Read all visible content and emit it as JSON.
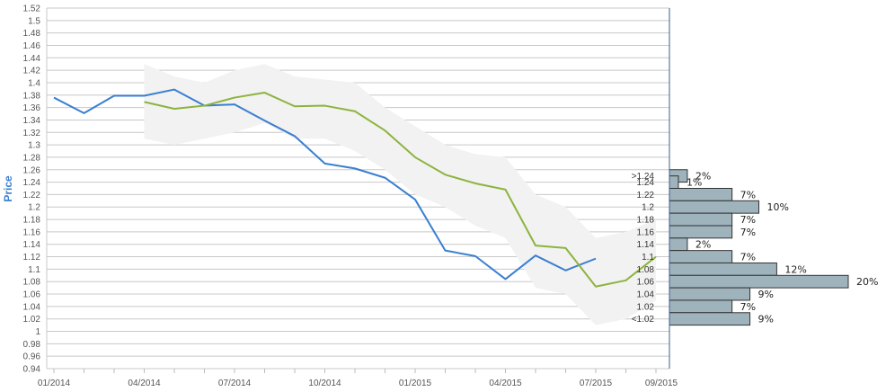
{
  "chart_data": {
    "type": "line",
    "ylabel": "Price",
    "ylim": [
      0.94,
      1.52
    ],
    "y_ticks": [
      "0.94",
      "0.96",
      "0.98",
      "1",
      "1.02",
      "1.04",
      "1.06",
      "1.08",
      "1.1",
      "1.12",
      "1.14",
      "1.16",
      "1.18",
      "1.2",
      "1.22",
      "1.24",
      "1.26",
      "1.28",
      "1.3",
      "1.32",
      "1.34",
      "1.36",
      "1.38",
      "1.4",
      "1.42",
      "1.44",
      "1.46",
      "1.48",
      "1.5",
      "1.52"
    ],
    "x_ticks": [
      "01/2014",
      "04/2014",
      "07/2014",
      "10/2014",
      "01/2015",
      "04/2015",
      "07/2015",
      "09/2015"
    ],
    "grid": true,
    "series": [
      {
        "color": "#3a7fd0",
        "x": [
          "2014-01",
          "2014-02",
          "2014-03",
          "2014-04",
          "2014-05",
          "2014-06",
          "2014-07",
          "2014-08",
          "2014-09",
          "2014-10",
          "2014-11",
          "2014-12",
          "2015-01",
          "2015-02",
          "2015-03",
          "2015-04",
          "2015-05",
          "2015-06",
          "2015-07"
        ],
        "values": [
          1.376,
          1.351,
          1.379,
          1.379,
          1.389,
          1.363,
          1.365,
          1.339,
          1.314,
          1.27,
          1.262,
          1.247,
          1.212,
          1.13,
          1.121,
          1.084,
          1.122,
          1.098,
          1.117
        ]
      },
      {
        "color": "#8db33f",
        "x": [
          "2014-04",
          "2014-05",
          "2014-06",
          "2014-07",
          "2014-08",
          "2014-09",
          "2014-10",
          "2014-11",
          "2014-12",
          "2015-01",
          "2015-02",
          "2015-03",
          "2015-04",
          "2015-05",
          "2015-06",
          "2015-07",
          "2015-08",
          "2015-09"
        ],
        "values": [
          1.369,
          1.358,
          1.363,
          1.376,
          1.384,
          1.362,
          1.363,
          1.354,
          1.323,
          1.28,
          1.252,
          1.238,
          1.228,
          1.138,
          1.134,
          1.072,
          1.082,
          1.12
        ]
      }
    ],
    "forecast_band": {
      "color": "#f2f2f2",
      "x": [
        "2014-04",
        "2014-05",
        "2014-06",
        "2014-07",
        "2014-08",
        "2014-09",
        "2014-10",
        "2014-11",
        "2014-12",
        "2015-01",
        "2015-02",
        "2015-03",
        "2015-04",
        "2015-05",
        "2015-06",
        "2015-07",
        "2015-08",
        "2015-09"
      ],
      "upper": [
        1.43,
        1.41,
        1.4,
        1.42,
        1.43,
        1.41,
        1.405,
        1.4,
        1.36,
        1.33,
        1.3,
        1.285,
        1.28,
        1.22,
        1.2,
        1.15,
        1.16,
        1.18
      ],
      "lower": [
        1.31,
        1.3,
        1.31,
        1.32,
        1.335,
        1.31,
        1.31,
        1.29,
        1.26,
        1.22,
        1.2,
        1.17,
        1.15,
        1.07,
        1.06,
        1.01,
        1.02,
        1.05
      ]
    },
    "distribution": {
      "color": "#9fb3bd",
      "bins": [
        {
          "label": ">1.24",
          "center": 1.25,
          "pct": "2%",
          "value": 2
        },
        {
          "label": "1.24",
          "center": 1.24,
          "pct": "1%",
          "value": 1
        },
        {
          "label": "1.22",
          "center": 1.22,
          "pct": "7%",
          "value": 7
        },
        {
          "label": "1.2",
          "center": 1.2,
          "pct": "10%",
          "value": 10
        },
        {
          "label": "1.18",
          "center": 1.18,
          "pct": "7%",
          "value": 7
        },
        {
          "label": "1.16",
          "center": 1.16,
          "pct": "7%",
          "value": 7
        },
        {
          "label": "1.14",
          "center": 1.14,
          "pct": "2%",
          "value": 2
        },
        {
          "label": "1.1",
          "center": 1.12,
          "pct": "7%",
          "value": 7
        },
        {
          "label": "1.08",
          "center": 1.1,
          "pct": "12%",
          "value": 12
        },
        {
          "label": "1.06",
          "center": 1.08,
          "pct": "20%",
          "value": 20
        },
        {
          "label": "1.04",
          "center": 1.06,
          "pct": "9%",
          "value": 9
        },
        {
          "label": "1.02",
          "center": 1.04,
          "pct": "7%",
          "value": 7
        },
        {
          "label": "<1.02",
          "center": 1.02,
          "pct": "9%",
          "value": 9
        }
      ]
    }
  }
}
